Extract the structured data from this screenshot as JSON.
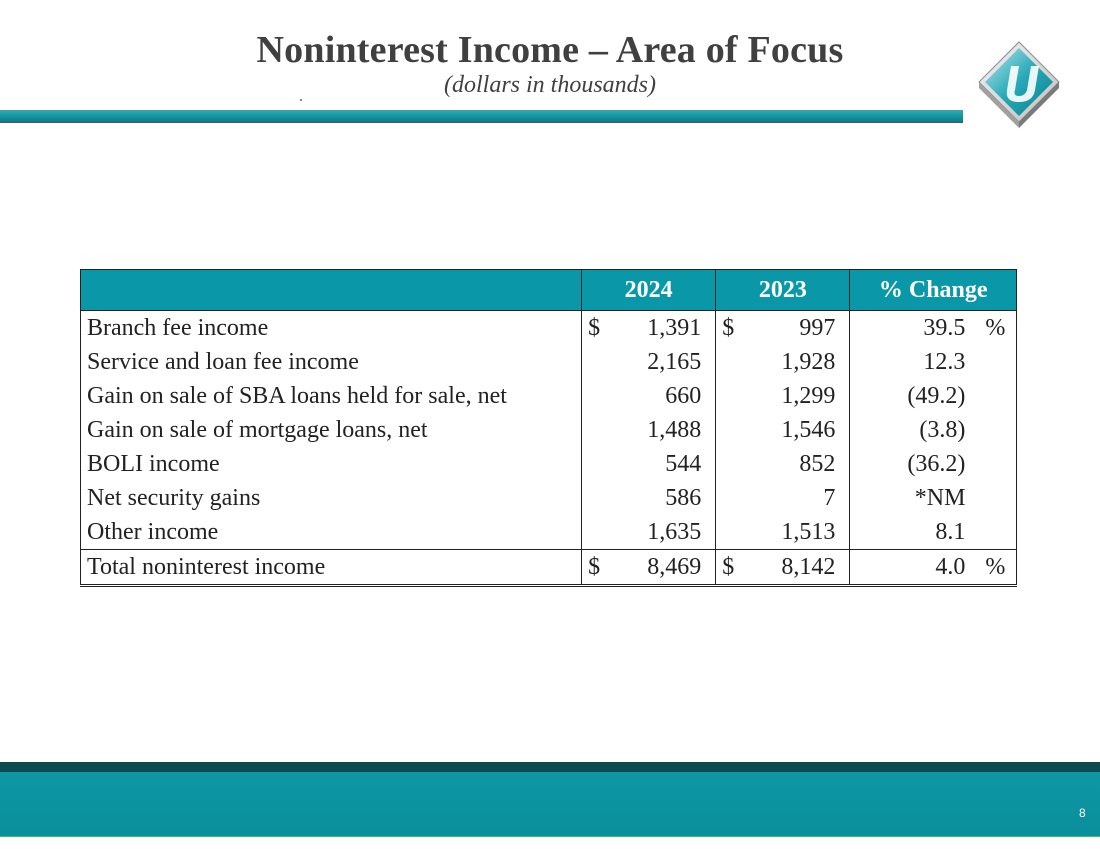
{
  "header": {
    "title": "Noninterest Income – Area of Focus",
    "subtitle": "(dollars in thousands)"
  },
  "colors": {
    "accent": "#0a98a8",
    "footer_dark": "#0b4a4f"
  },
  "logo": {
    "icon": "company-logo-icon"
  },
  "table": {
    "columns": [
      "2024",
      "2023",
      "% Change"
    ],
    "rows": [
      {
        "label": "Branch fee income",
        "cur_sym_2024": "$",
        "v2024": "1,391",
        "cur_sym_2023": "$",
        "v2023": "997",
        "change": "39.5",
        "pct": "%"
      },
      {
        "label": "Service and loan fee income",
        "cur_sym_2024": "",
        "v2024": "2,165",
        "cur_sym_2023": "",
        "v2023": "1,928",
        "change": "12.3",
        "pct": ""
      },
      {
        "label": "Gain on sale of SBA loans held for sale, net",
        "cur_sym_2024": "",
        "v2024": "660",
        "cur_sym_2023": "",
        "v2023": "1,299",
        "change": "(49.2)",
        "pct": ""
      },
      {
        "label": "Gain on sale of mortgage loans, net",
        "cur_sym_2024": "",
        "v2024": "1,488",
        "cur_sym_2023": "",
        "v2023": "1,546",
        "change": "(3.8)",
        "pct": ""
      },
      {
        "label": "BOLI income",
        "cur_sym_2024": "",
        "v2024": "544",
        "cur_sym_2023": "",
        "v2023": "852",
        "change": "(36.2)",
        "pct": ""
      },
      {
        "label": "Net security gains",
        "cur_sym_2024": "",
        "v2024": "586",
        "cur_sym_2023": "",
        "v2023": "7",
        "change": "*NM",
        "pct": ""
      },
      {
        "label": "Other income",
        "cur_sym_2024": "",
        "v2024": "1,635",
        "cur_sym_2023": "",
        "v2023": "1,513",
        "change": "8.1",
        "pct": ""
      }
    ],
    "total": {
      "label": "Total noninterest income",
      "cur_sym_2024": "$",
      "v2024": "8,469",
      "cur_sym_2023": "$",
      "v2023": "8,142",
      "change": "4.0",
      "pct": "%"
    }
  },
  "footer": {
    "page_number": "8"
  }
}
